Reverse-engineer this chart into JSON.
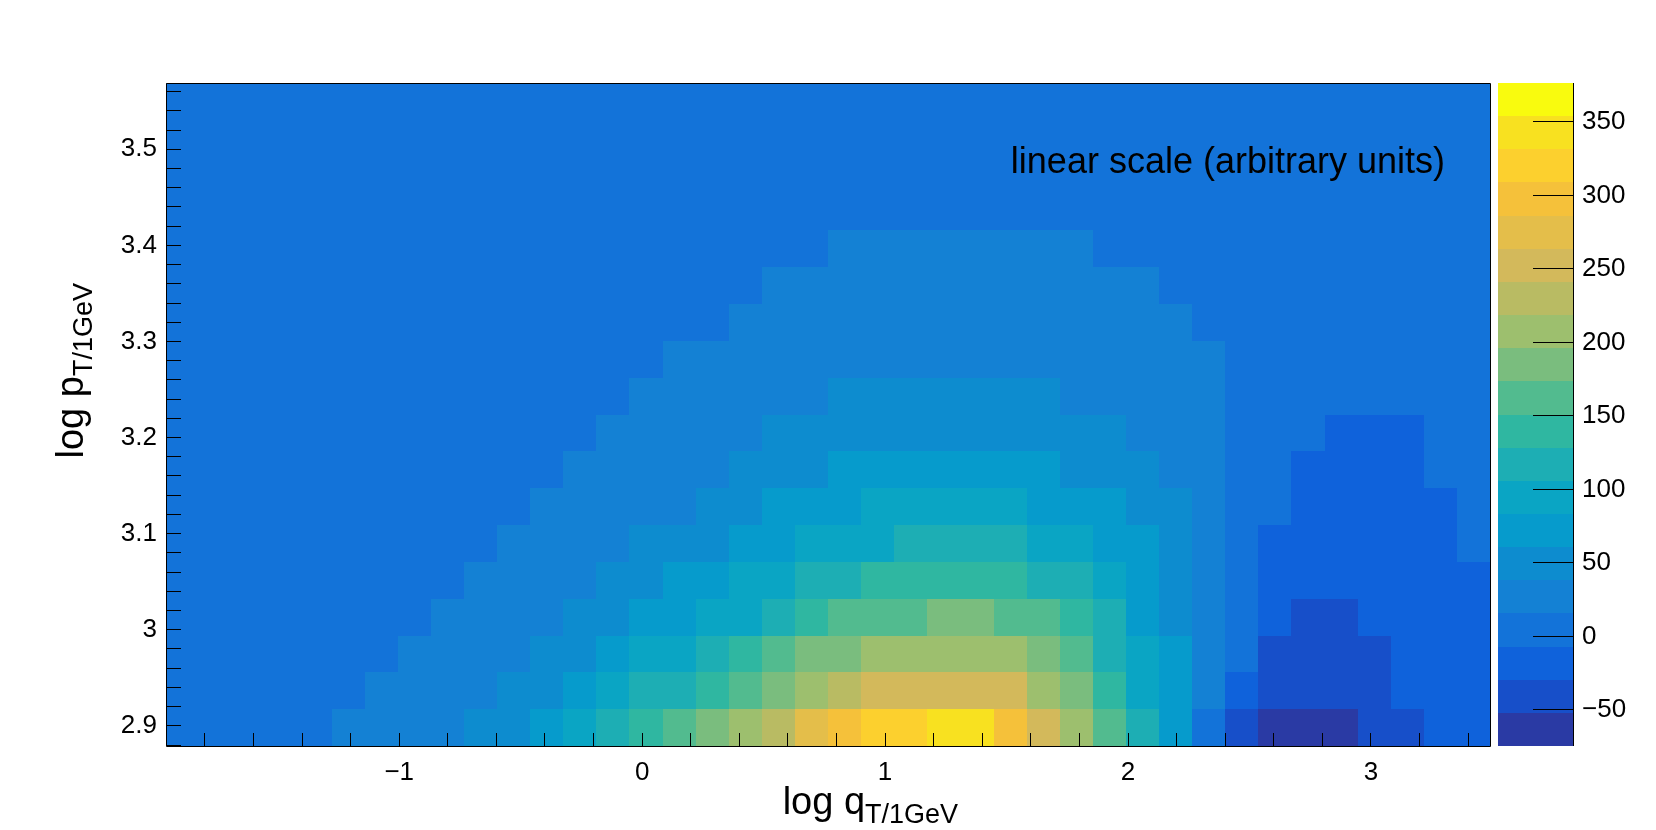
{
  "chart_data": {
    "type": "heatmap",
    "xlabel": "log q$_{T/1GeV}$",
    "ylabel": "log p$_{T/1GeV}$",
    "annotations": [
      "linear scale (arbitrary units)"
    ],
    "xlim": [
      -1.96,
      3.49
    ],
    "ylim": [
      2.879,
      3.569
    ],
    "xticks": [
      {
        "value": -1.8,
        "label": null
      },
      {
        "value": -1.6,
        "label": null
      },
      {
        "value": -1.4,
        "label": null
      },
      {
        "value": -1.2,
        "label": null
      },
      -1,
      {
        "value": -0.8,
        "label": null
      },
      {
        "value": -0.6,
        "label": null
      },
      {
        "value": -0.4,
        "label": null
      },
      {
        "value": -0.2,
        "label": null
      },
      0,
      {
        "value": 0.2,
        "label": null
      },
      {
        "value": 0.4,
        "label": null
      },
      {
        "value": 0.6,
        "label": null
      },
      {
        "value": 0.8,
        "label": null
      },
      1,
      {
        "value": 1.2,
        "label": null
      },
      {
        "value": 1.4,
        "label": null
      },
      {
        "value": 1.6,
        "label": null
      },
      {
        "value": 1.8,
        "label": null
      },
      2,
      {
        "value": 2.2,
        "label": null
      },
      {
        "value": 2.4,
        "label": null
      },
      {
        "value": 2.6,
        "label": null
      },
      {
        "value": 2.8,
        "label": null
      },
      3,
      {
        "value": 3.2,
        "label": null
      },
      {
        "value": 3.4,
        "label": null
      }
    ],
    "yticks": [
      {
        "value": 2.88,
        "label": null
      },
      2.9,
      {
        "value": 2.92,
        "label": null
      },
      {
        "value": 2.94,
        "label": null
      },
      {
        "value": 2.96,
        "label": null
      },
      {
        "value": 2.98,
        "label": null
      },
      3,
      {
        "value": 3.02,
        "label": null
      },
      {
        "value": 3.04,
        "label": null
      },
      {
        "value": 3.06,
        "label": null
      },
      {
        "value": 3.08,
        "label": null
      },
      3.1,
      {
        "value": 3.12,
        "label": null
      },
      {
        "value": 3.14,
        "label": null
      },
      {
        "value": 3.16,
        "label": null
      },
      {
        "value": 3.18,
        "label": null
      },
      3.2,
      {
        "value": 3.22,
        "label": null
      },
      {
        "value": 3.24,
        "label": null
      },
      {
        "value": 3.26,
        "label": null
      },
      {
        "value": 3.28,
        "label": null
      },
      3.3,
      {
        "value": 3.32,
        "label": null
      },
      {
        "value": 3.34,
        "label": null
      },
      {
        "value": 3.36,
        "label": null
      },
      {
        "value": 3.38,
        "label": null
      },
      3.4,
      {
        "value": 3.42,
        "label": null
      },
      {
        "value": 3.44,
        "label": null
      },
      {
        "value": 3.46,
        "label": null
      },
      {
        "value": 3.48,
        "label": null
      },
      3.5,
      {
        "value": 3.52,
        "label": null
      },
      {
        "value": 3.54,
        "label": null
      },
      {
        "value": 3.56,
        "label": null
      }
    ],
    "clim": [
      -75,
      376
    ],
    "cticks": [
      -50,
      0,
      50,
      100,
      150,
      200,
      250,
      300,
      350
    ],
    "cells": [
      [
        5,
        5,
        5,
        5,
        5,
        5,
        5,
        5,
        5,
        5,
        5,
        5,
        5,
        5,
        5,
        5,
        5,
        5,
        5,
        5,
        5,
        5,
        5,
        5,
        5,
        5,
        5,
        5,
        5,
        5,
        5,
        5,
        5,
        5,
        5,
        5,
        5,
        5,
        5,
        5
      ],
      [
        5,
        5,
        5,
        5,
        5,
        5,
        5,
        5,
        5,
        5,
        5,
        5,
        5,
        5,
        5,
        5,
        5,
        5,
        5,
        5,
        5,
        5,
        5,
        5,
        5,
        5,
        5,
        5,
        5,
        5,
        5,
        5,
        5,
        5,
        5,
        5,
        5,
        5,
        5,
        5
      ],
      [
        5,
        5,
        5,
        5,
        5,
        5,
        5,
        5,
        5,
        5,
        5,
        5,
        5,
        5,
        5,
        5,
        5,
        5,
        5,
        5,
        5,
        5,
        5,
        5,
        5,
        5,
        5,
        5,
        5,
        5,
        5,
        5,
        5,
        5,
        5,
        5,
        5,
        5,
        5,
        5
      ],
      [
        5,
        5,
        5,
        5,
        5,
        5,
        5,
        5,
        5,
        5,
        5,
        5,
        5,
        5,
        5,
        5,
        5,
        5,
        5,
        5,
        5,
        5,
        5,
        5,
        5,
        5,
        5,
        5,
        5,
        5,
        5,
        5,
        5,
        5,
        5,
        5,
        5,
        5,
        5,
        5
      ],
      [
        5,
        5,
        5,
        5,
        5,
        5,
        5,
        5,
        5,
        5,
        5,
        5,
        5,
        5,
        5,
        5,
        5,
        5,
        5,
        5,
        25,
        25,
        25,
        25,
        25,
        25,
        25,
        25,
        5,
        5,
        5,
        5,
        5,
        5,
        5,
        5,
        5,
        5,
        5,
        5
      ],
      [
        5,
        5,
        5,
        5,
        5,
        5,
        5,
        5,
        5,
        5,
        5,
        5,
        5,
        5,
        5,
        5,
        5,
        5,
        25,
        25,
        25,
        25,
        25,
        25,
        25,
        25,
        25,
        25,
        25,
        25,
        5,
        5,
        5,
        5,
        5,
        5,
        5,
        5,
        5,
        5
      ],
      [
        5,
        5,
        5,
        5,
        5,
        5,
        5,
        5,
        5,
        5,
        5,
        5,
        5,
        5,
        5,
        5,
        5,
        25,
        25,
        25,
        25,
        25,
        25,
        25,
        25,
        25,
        25,
        25,
        25,
        25,
        25,
        5,
        5,
        5,
        5,
        5,
        5,
        5,
        5,
        5
      ],
      [
        5,
        5,
        5,
        5,
        5,
        5,
        5,
        5,
        5,
        5,
        5,
        5,
        5,
        5,
        5,
        25,
        25,
        25,
        25,
        25,
        25,
        25,
        25,
        25,
        25,
        25,
        25,
        25,
        25,
        25,
        25,
        25,
        5,
        5,
        5,
        5,
        5,
        5,
        5,
        5
      ],
      [
        5,
        5,
        5,
        5,
        5,
        5,
        5,
        5,
        5,
        5,
        5,
        5,
        5,
        5,
        25,
        25,
        25,
        25,
        25,
        25,
        50,
        50,
        50,
        50,
        50,
        50,
        50,
        25,
        25,
        25,
        25,
        25,
        5,
        5,
        5,
        5,
        5,
        5,
        5,
        5
      ],
      [
        5,
        5,
        5,
        5,
        5,
        5,
        5,
        5,
        5,
        5,
        5,
        5,
        5,
        25,
        25,
        25,
        25,
        25,
        50,
        50,
        50,
        50,
        50,
        50,
        50,
        50,
        50,
        50,
        50,
        25,
        25,
        25,
        5,
        5,
        5,
        -20,
        -20,
        -20,
        5,
        5
      ],
      [
        5,
        5,
        5,
        5,
        5,
        5,
        5,
        5,
        5,
        5,
        5,
        5,
        25,
        25,
        25,
        25,
        25,
        50,
        50,
        50,
        70,
        70,
        70,
        70,
        70,
        70,
        70,
        50,
        50,
        50,
        25,
        25,
        5,
        5,
        -20,
        -20,
        -20,
        -20,
        5,
        5
      ],
      [
        5,
        5,
        5,
        5,
        5,
        5,
        5,
        5,
        5,
        5,
        5,
        25,
        25,
        25,
        25,
        25,
        50,
        50,
        70,
        70,
        70,
        95,
        95,
        95,
        95,
        95,
        70,
        70,
        70,
        50,
        50,
        25,
        5,
        5,
        -20,
        -20,
        -20,
        -20,
        -20,
        5
      ],
      [
        5,
        5,
        5,
        5,
        5,
        5,
        5,
        5,
        5,
        5,
        25,
        25,
        25,
        25,
        50,
        50,
        50,
        70,
        70,
        95,
        95,
        95,
        115,
        115,
        115,
        115,
        95,
        95,
        70,
        70,
        50,
        25,
        5,
        -20,
        -20,
        -20,
        -20,
        -20,
        -20,
        5
      ],
      [
        5,
        5,
        5,
        5,
        5,
        5,
        5,
        5,
        5,
        25,
        25,
        25,
        25,
        50,
        50,
        70,
        70,
        95,
        95,
        115,
        115,
        140,
        140,
        140,
        140,
        140,
        115,
        115,
        95,
        70,
        50,
        25,
        5,
        -20,
        -20,
        -20,
        -20,
        -20,
        -20,
        -20
      ],
      [
        5,
        5,
        5,
        5,
        5,
        5,
        5,
        5,
        25,
        25,
        25,
        25,
        50,
        50,
        70,
        70,
        95,
        95,
        115,
        140,
        160,
        160,
        160,
        185,
        185,
        160,
        160,
        140,
        115,
        70,
        50,
        25,
        5,
        -20,
        -40,
        -40,
        -20,
        -20,
        -20,
        -20
      ],
      [
        5,
        5,
        5,
        5,
        5,
        5,
        5,
        25,
        25,
        25,
        25,
        50,
        50,
        70,
        95,
        95,
        115,
        140,
        160,
        185,
        185,
        205,
        205,
        205,
        205,
        205,
        185,
        160,
        115,
        95,
        70,
        25,
        5,
        -40,
        -40,
        -40,
        -40,
        -20,
        -20,
        -20
      ],
      [
        5,
        5,
        5,
        5,
        5,
        5,
        25,
        25,
        25,
        25,
        50,
        50,
        70,
        95,
        115,
        115,
        140,
        160,
        185,
        205,
        230,
        250,
        250,
        250,
        250,
        250,
        205,
        185,
        140,
        95,
        70,
        25,
        -20,
        -40,
        -40,
        -40,
        -40,
        -20,
        -20,
        -20
      ],
      [
        5,
        5,
        5,
        5,
        5,
        25,
        25,
        25,
        25,
        50,
        50,
        70,
        95,
        115,
        140,
        160,
        185,
        205,
        230,
        275,
        295,
        320,
        320,
        340,
        340,
        295,
        250,
        205,
        160,
        115,
        70,
        5,
        -40,
        -65,
        -65,
        -65,
        -40,
        -40,
        -20,
        -20
      ]
    ]
  }
}
